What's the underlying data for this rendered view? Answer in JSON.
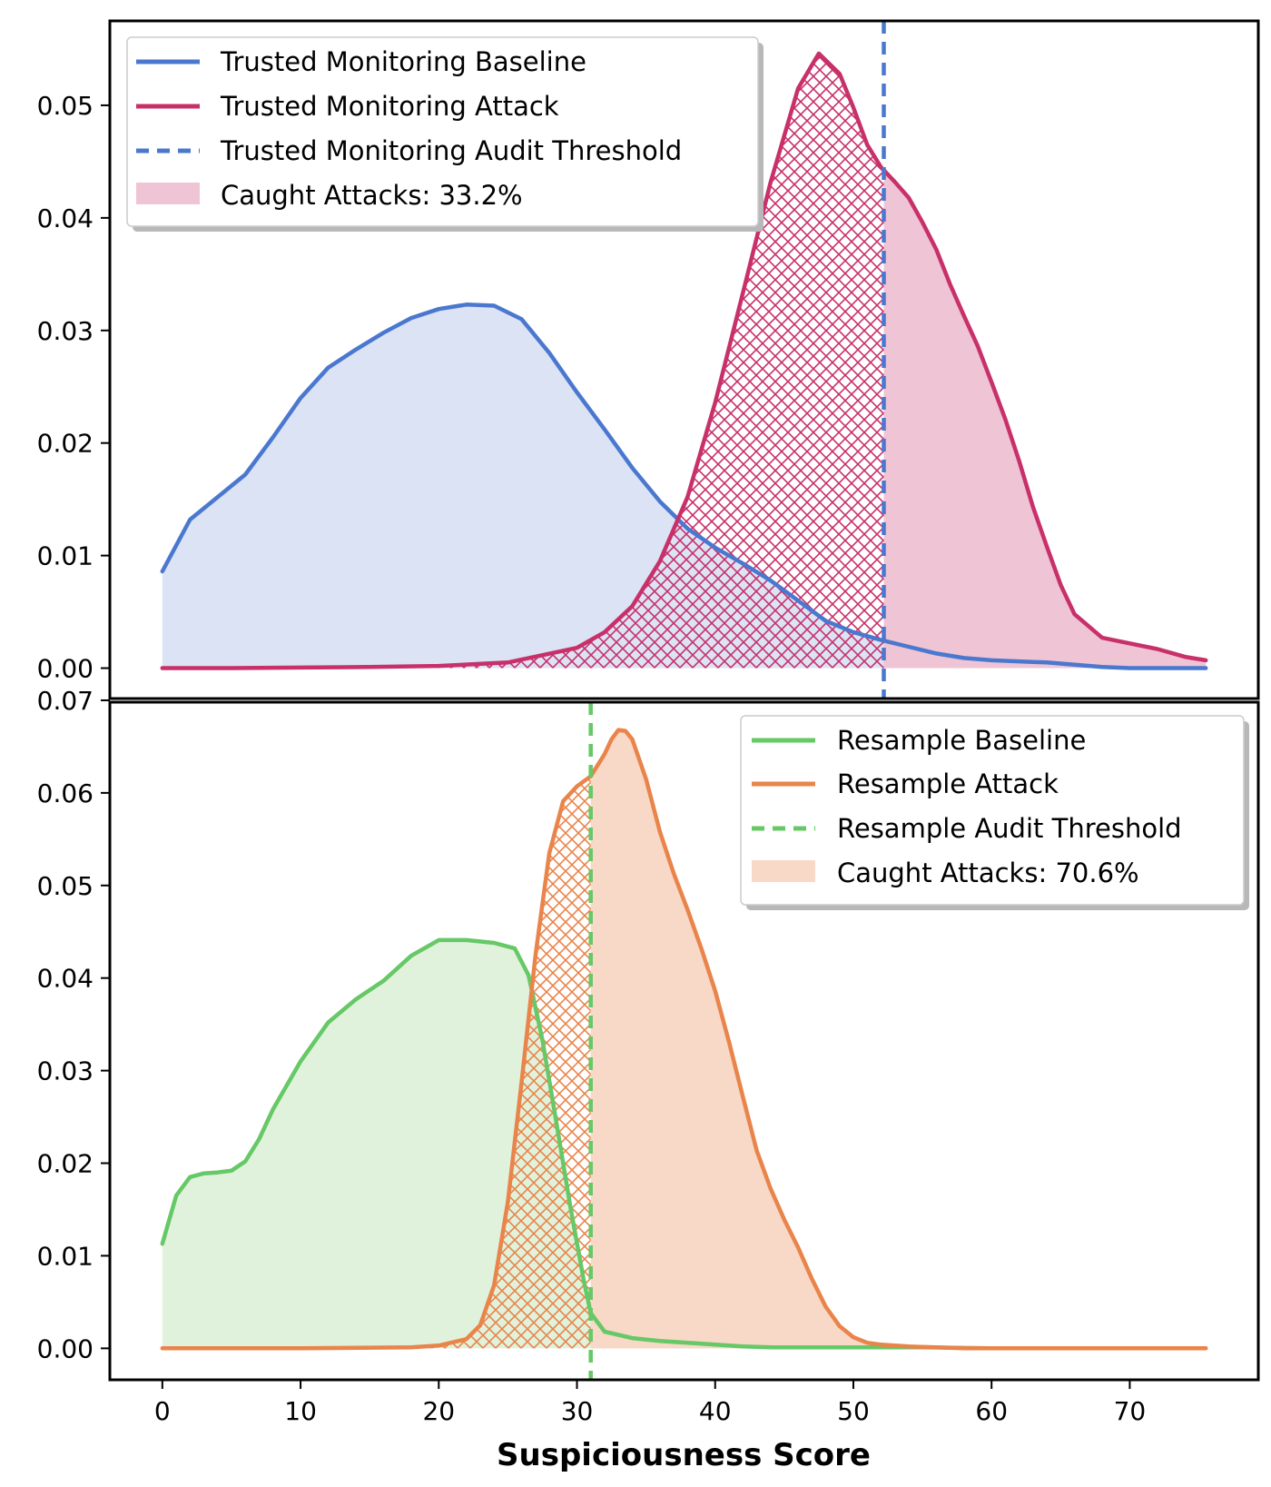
{
  "chart_data": [
    {
      "type": "area",
      "panel": "top",
      "xlim": [
        -3.8,
        79.3
      ],
      "ylim": [
        -0.0027,
        0.0575
      ],
      "yticks": [
        0.0,
        0.01,
        0.02,
        0.03,
        0.04,
        0.05
      ],
      "ytick_labels": [
        "0.00",
        "0.01",
        "0.02",
        "0.03",
        "0.04",
        "0.05"
      ],
      "grid": false,
      "legend_position": "upper left",
      "threshold": {
        "name": "Trusted Monitoring Audit Threshold",
        "x": 52.2,
        "color": "#4a78cf"
      },
      "caught_label": "Caught Attacks: 33.2%",
      "caught_pct": 33.2,
      "series": [
        {
          "name": "Trusted Monitoring Baseline",
          "color": "#4a78cf",
          "fill": "#dbe3f4",
          "x": [
            0,
            2,
            4,
            6,
            8,
            10,
            12,
            14,
            16,
            18,
            20,
            22,
            24,
            26,
            28,
            30,
            32,
            34,
            36,
            38,
            40,
            42,
            44,
            46,
            48,
            50,
            52,
            54,
            56,
            58,
            60,
            62,
            64,
            66,
            68,
            70,
            72,
            75.5
          ],
          "y": [
            0.0086,
            0.0132,
            0.0152,
            0.0172,
            0.0205,
            0.024,
            0.0267,
            0.0283,
            0.0298,
            0.0311,
            0.0319,
            0.0323,
            0.0322,
            0.031,
            0.028,
            0.0245,
            0.0212,
            0.0178,
            0.0148,
            0.0124,
            0.0107,
            0.0093,
            0.0078,
            0.006,
            0.0042,
            0.0032,
            0.0025,
            0.0019,
            0.0013,
            0.0009,
            0.0007,
            0.0006,
            0.0005,
            0.0003,
            0.0001,
            0.0,
            0.0,
            0.0
          ]
        },
        {
          "name": "Trusted Monitoring Attack",
          "color": "#c8306a",
          "fill": "#efc4d4",
          "x": [
            0,
            5,
            10,
            15,
            20,
            25,
            30,
            32,
            34,
            36,
            38,
            40,
            42,
            44,
            46,
            47.5,
            49,
            50,
            51,
            52,
            53,
            54,
            55,
            56,
            57,
            58,
            59,
            60,
            61,
            62,
            63,
            64,
            65,
            66,
            68,
            70,
            72,
            74,
            75.5
          ],
          "y": [
            0.0,
            0.0,
            5e-05,
            0.0001,
            0.0002,
            0.0005,
            0.0018,
            0.0032,
            0.0055,
            0.0095,
            0.0152,
            0.0236,
            0.0333,
            0.0431,
            0.0515,
            0.0546,
            0.0528,
            0.0498,
            0.0465,
            0.0445,
            0.0432,
            0.0418,
            0.0396,
            0.0372,
            0.0341,
            0.0313,
            0.0286,
            0.0254,
            0.0221,
            0.0184,
            0.0143,
            0.0108,
            0.0074,
            0.0048,
            0.0027,
            0.0022,
            0.0017,
            0.001,
            0.0007
          ]
        }
      ]
    },
    {
      "type": "area",
      "panel": "bottom",
      "xlim": [
        -3.8,
        79.3
      ],
      "ylim": [
        -0.0034,
        0.0698
      ],
      "yticks": [
        0.0,
        0.01,
        0.02,
        0.03,
        0.04,
        0.05,
        0.06,
        0.07
      ],
      "ytick_labels": [
        "0.00",
        "0.01",
        "0.02",
        "0.03",
        "0.04",
        "0.05",
        "0.06",
        "0.07"
      ],
      "xticks": [
        0,
        10,
        20,
        30,
        40,
        50,
        60,
        70
      ],
      "xtick_labels": [
        "0",
        "10",
        "20",
        "30",
        "40",
        "50",
        "60",
        "70"
      ],
      "xlabel": "Suspiciousness Score",
      "grid": false,
      "legend_position": "upper right",
      "threshold": {
        "name": "Resample Audit Threshold",
        "x": 31.0,
        "color": "#66c866"
      },
      "caught_label": "Caught Attacks: 70.6%",
      "caught_pct": 70.6,
      "series": [
        {
          "name": "Resample Baseline",
          "color": "#66c866",
          "fill": "#e0f2dc",
          "x": [
            0,
            1,
            2,
            3,
            4,
            5,
            6,
            7,
            8,
            10,
            12,
            14,
            16,
            18,
            20,
            22,
            24,
            25.5,
            26.5,
            27.5,
            28.5,
            29.5,
            30.5,
            31,
            32,
            34,
            36,
            38,
            40,
            42,
            44,
            50,
            55,
            60,
            65,
            70,
            75.5
          ],
          "y": [
            0.0113,
            0.0165,
            0.0185,
            0.0189,
            0.019,
            0.0192,
            0.0202,
            0.0226,
            0.0258,
            0.031,
            0.0352,
            0.0377,
            0.0397,
            0.0424,
            0.0441,
            0.0441,
            0.0438,
            0.0432,
            0.0403,
            0.0333,
            0.0245,
            0.0155,
            0.0073,
            0.0038,
            0.0018,
            0.0011,
            0.0008,
            0.0006,
            0.0004,
            0.0002,
            0.0001,
            0.0001,
            0.0001,
            0.0,
            0.0,
            0.0,
            0.0
          ]
        },
        {
          "name": "Resample Attack",
          "color": "#e9844a",
          "fill": "#f8d8c6",
          "x": [
            0,
            10,
            18,
            20,
            22,
            23,
            24,
            25,
            26,
            27,
            28,
            29,
            30,
            31,
            32,
            32.5,
            33,
            33.5,
            34,
            35,
            36,
            37,
            38,
            39,
            40,
            41,
            42,
            43,
            44,
            45,
            46,
            47,
            48,
            49,
            50,
            51,
            52,
            54,
            56,
            58,
            60,
            75.5
          ],
          "y": [
            0.0,
            0.0,
            0.0001,
            0.0003,
            0.001,
            0.0025,
            0.0068,
            0.0158,
            0.0288,
            0.0425,
            0.0535,
            0.0591,
            0.0607,
            0.0618,
            0.0642,
            0.0658,
            0.0668,
            0.0667,
            0.0658,
            0.0615,
            0.0558,
            0.0513,
            0.0474,
            0.0432,
            0.0386,
            0.0331,
            0.0272,
            0.0214,
            0.0173,
            0.0139,
            0.0109,
            0.0075,
            0.0045,
            0.0024,
            0.0012,
            0.0006,
            0.0004,
            0.0002,
            0.0001,
            0.0,
            0.0,
            0.0
          ]
        }
      ]
    }
  ]
}
